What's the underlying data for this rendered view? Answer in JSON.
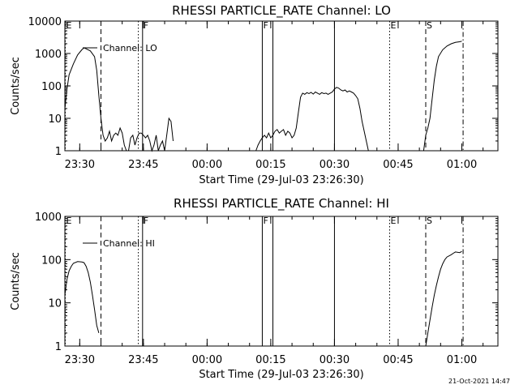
{
  "footer": {
    "timestamp": "21-Oct-2021 14:47"
  },
  "colors": {
    "background": "#ffffff",
    "foreground": "#000000"
  },
  "chart_data": [
    {
      "type": "line",
      "title": "RHESSI PARTICLE_RATE Channel: LO",
      "xlabel": "Start Time (29-Jul-03 23:26:30)",
      "ylabel": "Counts/sec",
      "y_scale": "log",
      "ylim": [
        1,
        10000
      ],
      "y_ticks": [
        1,
        10,
        100,
        1000,
        10000
      ],
      "y_tick_labels": [
        "1",
        "10",
        "100",
        "1000",
        "10000"
      ],
      "x_unit": "minutes after 23:26:30",
      "xlim": [
        0,
        102
      ],
      "x_ticks": [
        3.5,
        18.5,
        33.5,
        48.5,
        63.5,
        78.5,
        93.5
      ],
      "x_tick_labels": [
        "23:30",
        "23:45",
        "00:00",
        "00:15",
        "00:30",
        "00:45",
        "01:00"
      ],
      "legend": {
        "label": "Channel: LO",
        "placement": "top-left"
      },
      "markers": [
        {
          "label": "E",
          "x": 0.1,
          "style": "dotted"
        },
        {
          "label": "",
          "x": 8.5,
          "style": "dashed"
        },
        {
          "label": "",
          "x": 17.3,
          "style": "dotted"
        },
        {
          "label": "F",
          "x": 18.3,
          "style": "solid"
        },
        {
          "label": "F",
          "x": 46.5,
          "style": "solid"
        },
        {
          "label": "",
          "x": 49.0,
          "style": "solid"
        },
        {
          "label": "",
          "x": 63.5,
          "style": "solid"
        },
        {
          "label": "E",
          "x": 76.5,
          "style": "dotted"
        },
        {
          "label": "S",
          "x": 85.0,
          "style": "dashed"
        },
        {
          "label": "",
          "x": 93.8,
          "style": "dashdot"
        }
      ],
      "series": [
        {
          "segments": [
            [
              [
                0,
                20
              ],
              [
                0.5,
                80
              ],
              [
                1,
                220
              ],
              [
                2,
                480
              ],
              [
                3,
                900
              ],
              [
                4,
                1300
              ],
              [
                4.5,
                1500
              ],
              [
                5,
                1400
              ],
              [
                6,
                1200
              ],
              [
                7,
                800
              ],
              [
                7.5,
                300
              ],
              [
                8,
                50
              ],
              [
                8.5,
                10
              ],
              [
                9,
                3
              ],
              [
                9.5,
                2
              ],
              [
                10,
                2.5
              ],
              [
                10.5,
                4
              ],
              [
                11,
                2
              ],
              [
                11.5,
                3
              ],
              [
                12,
                3.5
              ],
              [
                12.5,
                3
              ],
              [
                13,
                5
              ],
              [
                13.5,
                3.5
              ],
              [
                14,
                1.5
              ],
              [
                14.5,
                1
              ],
              [
                15,
                1
              ],
              [
                15.5,
                2.5
              ],
              [
                16,
                3
              ],
              [
                16.5,
                1.5
              ],
              [
                17,
                2.5
              ],
              [
                17.5,
                3.5
              ],
              [
                18,
                3.5
              ],
              [
                18.5,
                3
              ],
              [
                19,
                2.5
              ],
              [
                19.5,
                3
              ],
              [
                20,
                2
              ],
              [
                20.5,
                1
              ],
              [
                21,
                1.5
              ],
              [
                21.5,
                3
              ],
              [
                22,
                1
              ],
              [
                22.5,
                1.5
              ],
              [
                23,
                2
              ],
              [
                23.5,
                1
              ],
              [
                24,
                3
              ],
              [
                24.5,
                10
              ],
              [
                25,
                8
              ],
              [
                25.5,
                2
              ]
            ],
            [
              [
                45,
                1
              ],
              [
                45.5,
                1.5
              ],
              [
                46,
                2
              ],
              [
                46.5,
                2.5
              ],
              [
                47,
                3
              ],
              [
                47.5,
                2.5
              ],
              [
                48,
                3.5
              ],
              [
                48.5,
                2.5
              ],
              [
                49,
                3
              ],
              [
                49.5,
                4
              ],
              [
                50,
                4.5
              ],
              [
                50.5,
                3.5
              ],
              [
                51,
                4
              ],
              [
                51.5,
                4.5
              ],
              [
                52,
                3
              ],
              [
                52.5,
                4
              ],
              [
                53,
                3.5
              ],
              [
                53.5,
                2.5
              ],
              [
                54,
                3
              ],
              [
                54.5,
                5
              ],
              [
                55,
                15
              ],
              [
                55.5,
                45
              ],
              [
                56,
                60
              ],
              [
                56.5,
                55
              ],
              [
                57,
                62
              ],
              [
                57.5,
                58
              ],
              [
                58,
                63
              ],
              [
                58.5,
                56
              ],
              [
                59,
                65
              ],
              [
                59.5,
                60
              ],
              [
                60,
                55
              ],
              [
                60.5,
                62
              ],
              [
                61,
                58
              ],
              [
                61.5,
                60
              ],
              [
                62,
                55
              ],
              [
                62.5,
                60
              ],
              [
                63,
                65
              ],
              [
                63.5,
                80
              ],
              [
                64,
                90
              ],
              [
                64.5,
                85
              ],
              [
                65,
                75
              ],
              [
                65.5,
                70
              ],
              [
                66,
                75
              ],
              [
                66.5,
                65
              ],
              [
                67,
                70
              ],
              [
                67.5,
                65
              ],
              [
                68,
                60
              ],
              [
                68.5,
                50
              ],
              [
                69,
                40
              ],
              [
                69.5,
                20
              ],
              [
                70,
                8
              ],
              [
                70.5,
                4
              ],
              [
                71,
                2
              ],
              [
                71.5,
                1
              ]
            ],
            [
              [
                84.5,
                1
              ],
              [
                85,
                3
              ],
              [
                85.5,
                5
              ],
              [
                86,
                10
              ],
              [
                86.5,
                40
              ],
              [
                87,
                150
              ],
              [
                87.5,
                400
              ],
              [
                88,
                800
              ],
              [
                89,
                1300
              ],
              [
                90,
                1700
              ],
              [
                91,
                2000
              ],
              [
                92,
                2200
              ],
              [
                93,
                2300
              ],
              [
                93.5,
                2400
              ]
            ]
          ]
        }
      ]
    },
    {
      "type": "line",
      "title": "RHESSI PARTICLE_RATE Channel: HI",
      "xlabel": "Start Time (29-Jul-03 23:26:30)",
      "ylabel": "Counts/sec",
      "y_scale": "log",
      "ylim": [
        1,
        1000
      ],
      "y_ticks": [
        1,
        10,
        100,
        1000
      ],
      "y_tick_labels": [
        "1",
        "10",
        "100",
        "1000"
      ],
      "x_unit": "minutes after 23:26:30",
      "xlim": [
        0,
        102
      ],
      "x_ticks": [
        3.5,
        18.5,
        33.5,
        48.5,
        63.5,
        78.5,
        93.5
      ],
      "x_tick_labels": [
        "23:30",
        "23:45",
        "00:00",
        "00:15",
        "00:30",
        "00:45",
        "01:00"
      ],
      "legend": {
        "label": "Channel: HI",
        "placement": "top-left"
      },
      "markers": [
        {
          "label": "E",
          "x": 0.1,
          "style": "dotted"
        },
        {
          "label": "",
          "x": 8.5,
          "style": "dashed"
        },
        {
          "label": "",
          "x": 17.3,
          "style": "dotted"
        },
        {
          "label": "F",
          "x": 18.3,
          "style": "solid"
        },
        {
          "label": "F",
          "x": 46.5,
          "style": "solid"
        },
        {
          "label": "",
          "x": 49.0,
          "style": "solid"
        },
        {
          "label": "",
          "x": 63.5,
          "style": "solid"
        },
        {
          "label": "E",
          "x": 76.5,
          "style": "dotted"
        },
        {
          "label": "S",
          "x": 85.0,
          "style": "dashed"
        },
        {
          "label": "",
          "x": 93.8,
          "style": "dashdot"
        }
      ],
      "series": [
        {
          "segments": [
            [
              [
                0,
                15
              ],
              [
                0.5,
                35
              ],
              [
                1,
                55
              ],
              [
                1.5,
                70
              ],
              [
                2,
                82
              ],
              [
                3,
                90
              ],
              [
                4,
                88
              ],
              [
                4.5,
                85
              ],
              [
                5,
                70
              ],
              [
                5.5,
                50
              ],
              [
                6,
                30
              ],
              [
                6.5,
                15
              ],
              [
                7,
                7
              ],
              [
                7.5,
                3
              ],
              [
                8,
                2
              ]
            ],
            [
              [
                85,
                1
              ],
              [
                85.5,
                2
              ],
              [
                86,
                4
              ],
              [
                86.5,
                8
              ],
              [
                87,
                15
              ],
              [
                87.5,
                25
              ],
              [
                88,
                40
              ],
              [
                88.5,
                60
              ],
              [
                89,
                80
              ],
              [
                89.5,
                100
              ],
              [
                90,
                115
              ],
              [
                91,
                130
              ],
              [
                91.5,
                140
              ],
              [
                92,
                150
              ],
              [
                93,
                145
              ],
              [
                93.5,
                155
              ]
            ]
          ]
        }
      ]
    }
  ]
}
